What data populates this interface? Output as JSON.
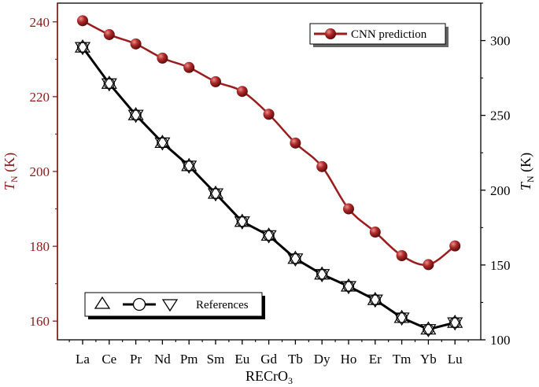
{
  "chart_data": {
    "type": "line",
    "categories": [
      "La",
      "Ce",
      "Pr",
      "Nd",
      "Pm",
      "Sm",
      "Eu",
      "Gd",
      "Tb",
      "Dy",
      "Ho",
      "Er",
      "Tm",
      "Yb",
      "Lu"
    ],
    "xlabel": {
      "base": "RECrO",
      "sub": "3"
    },
    "left_axis": {
      "label": {
        "italic": "T",
        "sub": "N",
        "rest": " (K)"
      },
      "ylim": [
        155,
        245
      ],
      "ticks": [
        160,
        180,
        200,
        220,
        240
      ],
      "color": "#8b1a1a"
    },
    "right_axis": {
      "label": {
        "italic": "T",
        "sub": "N",
        "rest": " (K)"
      },
      "ylim": [
        100,
        325
      ],
      "ticks": [
        100,
        150,
        200,
        250,
        300
      ],
      "color": "#000000"
    },
    "series": [
      {
        "name": "CNN prediction",
        "axis": "left",
        "color": "#9b1c1c",
        "marker": "sphere",
        "values": [
          240.3,
          236.6,
          234.1,
          230.3,
          227.8,
          224.0,
          221.4,
          215.3,
          207.6,
          201.3,
          190.0,
          183.8,
          177.5,
          175.1,
          180.1
        ]
      },
      {
        "name": "References",
        "axis": "left",
        "color": "#000000",
        "marker": "triangles-and-circles",
        "values": [
          233.2,
          223.5,
          215.1,
          207.7,
          201.5,
          194.1,
          186.6,
          182.9,
          176.7,
          172.5,
          169.3,
          165.7,
          160.9,
          157.8,
          159.6
        ]
      }
    ],
    "legend": [
      {
        "label": "CNN prediction",
        "position": "top-right"
      },
      {
        "label": "References",
        "position": "bottom-left"
      }
    ]
  }
}
